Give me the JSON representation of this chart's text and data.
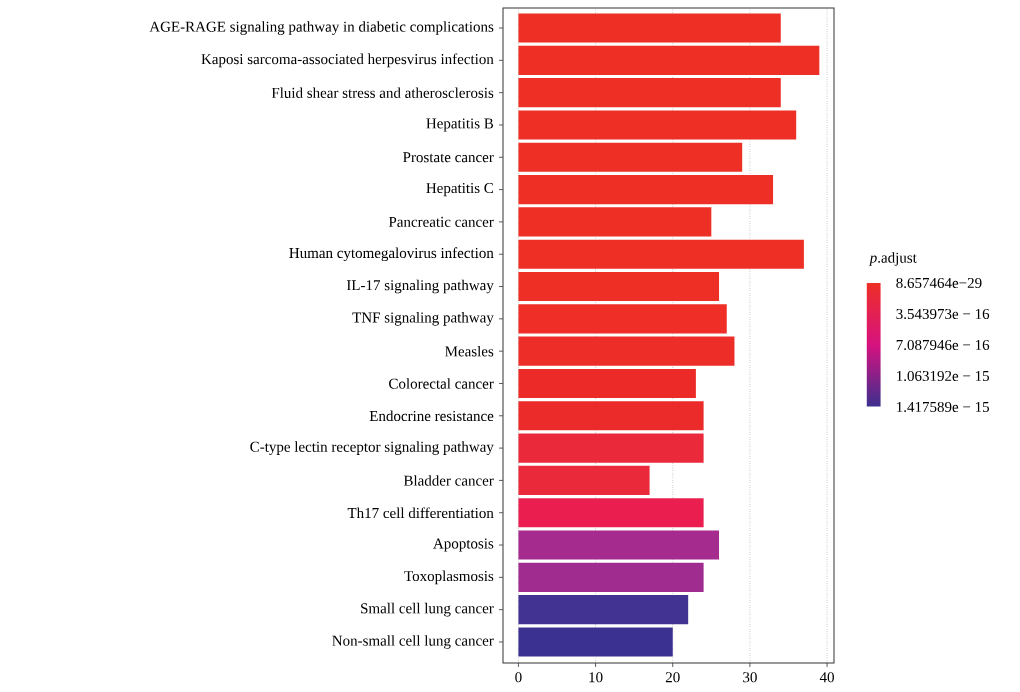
{
  "chart_data": {
    "type": "bar",
    "orientation": "horizontal",
    "categories": [
      "AGE-RAGE signaling pathway in diabetic complications",
      "Kaposi sarcoma-associated herpesvirus infection",
      "Fluid shear stress and atherosclerosis",
      "Hepatitis B",
      "Prostate cancer",
      "Hepatitis C",
      "Pancreatic cancer",
      "Human cytomegalovirus infection",
      "IL-17 signaling pathway",
      "TNF signaling pathway",
      "Measles",
      "Colorectal cancer",
      "Endocrine resistance",
      "C-type lectin receptor signaling pathway",
      "Bladder cancer",
      "Th17 cell differentiation",
      "Apoptosis",
      "Toxoplasmosis",
      "Small cell lung cancer",
      "Non-small cell lung cancer"
    ],
    "values": [
      34,
      39,
      34,
      36,
      29,
      33,
      25,
      37,
      26,
      27,
      28,
      23,
      24,
      24,
      17,
      24,
      26,
      24,
      22,
      20
    ],
    "colors": [
      "#ee2f26",
      "#ee2f26",
      "#ee2f26",
      "#ee2f26",
      "#ee2f26",
      "#ee2f26",
      "#ee2f26",
      "#ee2f26",
      "#ee2f26",
      "#ee2e27",
      "#ed2d28",
      "#ec2b28",
      "#eb2a2a",
      "#ea2a3a",
      "#ea2a3b",
      "#ea1f4f",
      "#a52b8f",
      "#a12c90",
      "#423292",
      "#3b3191"
    ],
    "xlim": [
      -2,
      40.9
    ],
    "xticks": [
      0,
      10,
      20,
      30,
      40
    ],
    "grid": "x",
    "clabel": "*p*.adjust",
    "clim": [
      8.657464e-29,
      1.417589e-15
    ],
    "cticks": [
      {
        "value": 8.657464e-29,
        "label": "8.657464e−29"
      },
      {
        "value": 3.543973e-16,
        "label": "3.543973e − 16"
      },
      {
        "value": 7.087946e-16,
        "label": "7.087946e − 16"
      },
      {
        "value": 1.063192e-15,
        "label": "1.063192e − 15"
      },
      {
        "value": 1.417589e-15,
        "label": "1.417589e − 15"
      }
    ]
  }
}
